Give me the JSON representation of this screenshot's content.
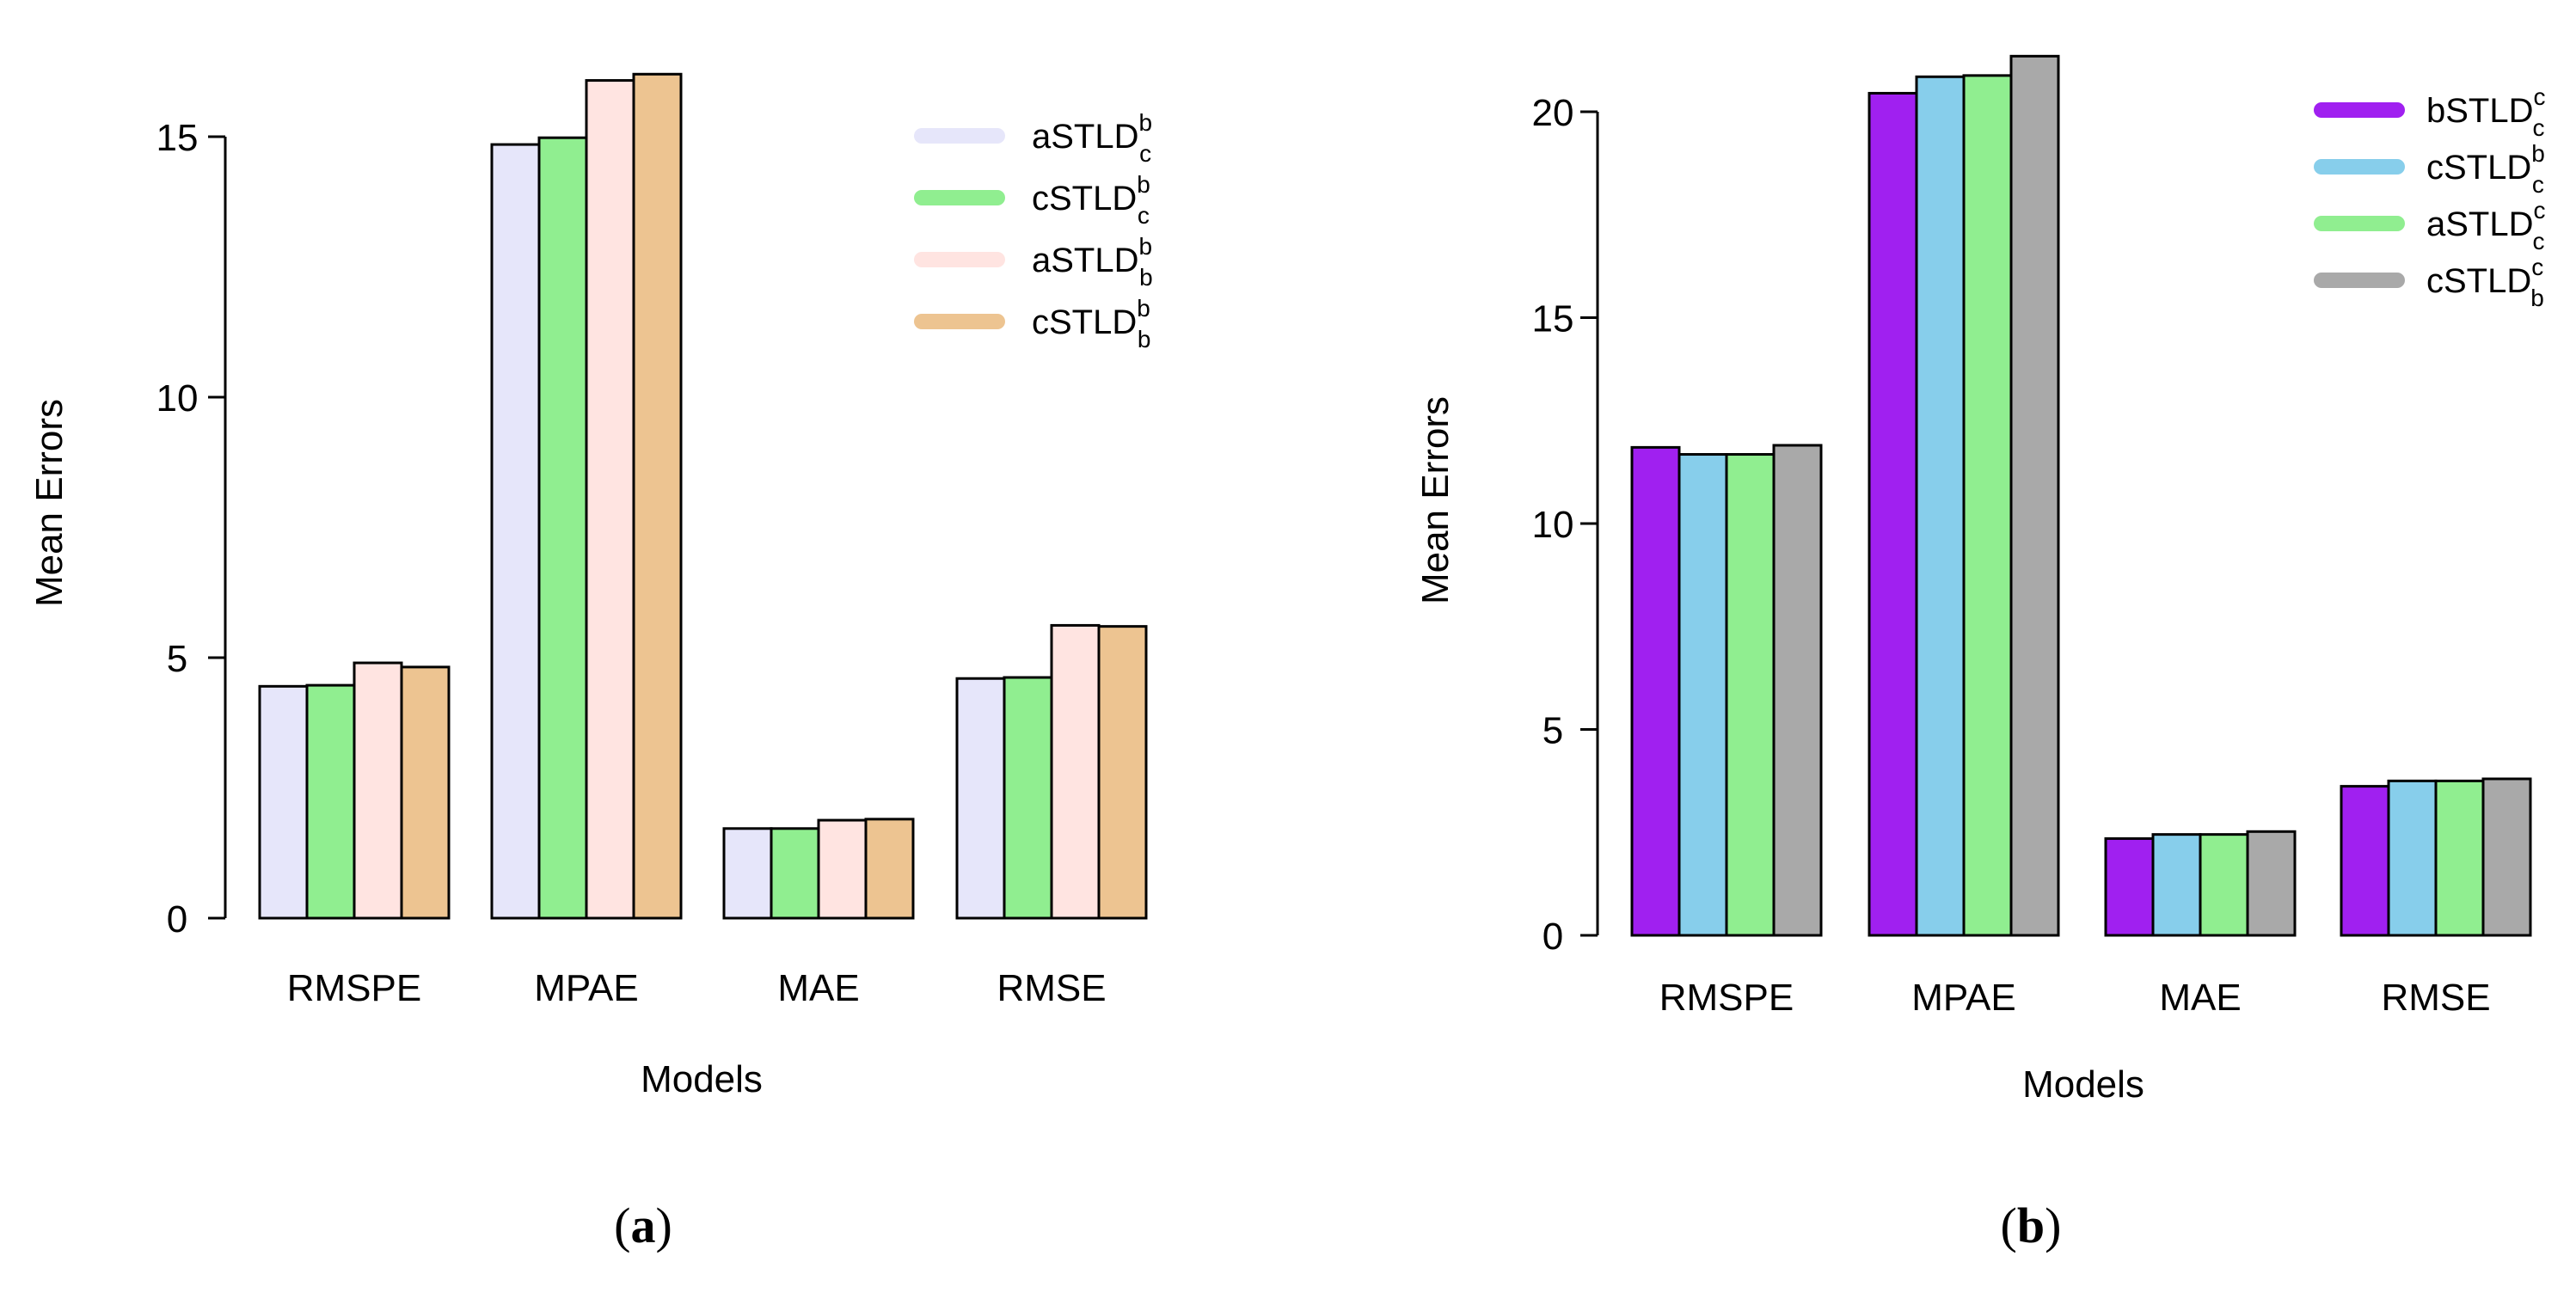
{
  "chart_data": [
    {
      "type": "bar",
      "panel_label": "a",
      "categories": [
        "RMSPE",
        "MPAE",
        "MAE",
        "RMSE"
      ],
      "xlabel": "Models",
      "ylabel": "Mean Errors",
      "ylim": [
        0,
        15
      ],
      "yticks": [
        0,
        5,
        10,
        15
      ],
      "grid": false,
      "legend_position": "top-right",
      "series": [
        {
          "name": "aSTLD",
          "sup": "b",
          "sub": "c",
          "color": "#E6E6FA",
          "values": [
            4.45,
            14.85,
            1.72,
            4.6
          ]
        },
        {
          "name": "cSTLD",
          "sup": "b",
          "sub": "c",
          "color": "#90EE90",
          "values": [
            4.47,
            14.98,
            1.72,
            4.62
          ]
        },
        {
          "name": "aSTLD",
          "sup": "b",
          "sub": "b",
          "color": "#FFE4E1",
          "values": [
            4.9,
            16.08,
            1.88,
            5.62
          ]
        },
        {
          "name": "cSTLD",
          "sup": "b",
          "sub": "b",
          "color": "#EDC491",
          "values": [
            4.82,
            16.2,
            1.9,
            5.6
          ]
        }
      ]
    },
    {
      "type": "bar",
      "panel_label": "b",
      "categories": [
        "RMSPE",
        "MPAE",
        "MAE",
        "RMSE"
      ],
      "xlabel": "Models",
      "ylabel": "Mean Errors",
      "ylim": [
        0,
        20
      ],
      "yticks": [
        0,
        5,
        10,
        15,
        20
      ],
      "grid": false,
      "legend_position": "top-right",
      "series": [
        {
          "name": "bSTLD",
          "sup": "c",
          "sub": "c",
          "color": "#A020F0",
          "values": [
            11.85,
            20.45,
            2.35,
            3.62
          ]
        },
        {
          "name": "cSTLD",
          "sup": "b",
          "sub": "c",
          "color": "#87CEEB",
          "values": [
            11.68,
            20.85,
            2.45,
            3.75
          ]
        },
        {
          "name": "aSTLD",
          "sup": "c",
          "sub": "c",
          "color": "#90EE90",
          "values": [
            11.68,
            20.88,
            2.45,
            3.75
          ]
        },
        {
          "name": "cSTLD",
          "sup": "c",
          "sub": "b",
          "color": "#A9A9A9",
          "values": [
            11.9,
            21.35,
            2.52,
            3.8
          ]
        }
      ]
    }
  ]
}
